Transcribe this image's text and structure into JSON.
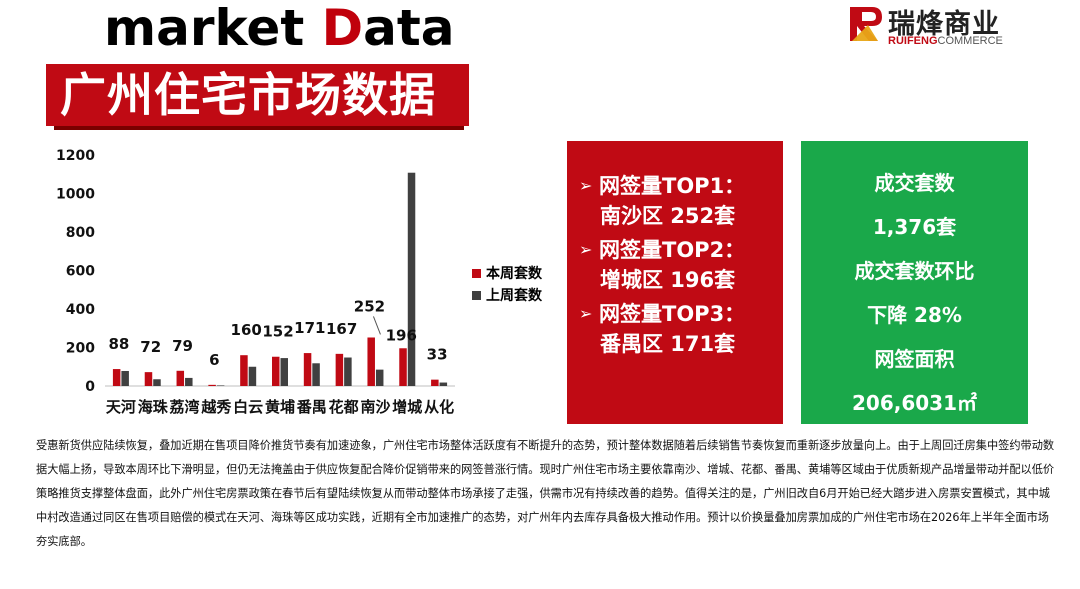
{
  "header": {
    "headline_prefix": "market ",
    "headline_accent": "D",
    "headline_suffix": "ata",
    "title": "广州住宅市场数据"
  },
  "logo": {
    "cn_name": "瑞烽商业",
    "en_bold": "RUIFENG",
    "en_light": "COMMERCE"
  },
  "chart_data": {
    "type": "bar",
    "categories": [
      "天河",
      "海珠",
      "荔湾",
      "越秀",
      "白云",
      "黄埔",
      "番禺",
      "花都",
      "南沙",
      "增城",
      "从化"
    ],
    "series": [
      {
        "name": "本周套数",
        "color": "#c00a14",
        "values": [
          88,
          72,
          79,
          6,
          160,
          152,
          171,
          167,
          252,
          196,
          33
        ]
      },
      {
        "name": "上周套数",
        "color": "#404040",
        "values": [
          78,
          35,
          42,
          3,
          100,
          145,
          118,
          148,
          85,
          1108,
          18
        ]
      }
    ],
    "data_labels": [
      "88",
      "72",
      "79",
      "6",
      "160",
      "152",
      "171",
      "167",
      "252",
      "196",
      "33"
    ],
    "yticks": [
      "0",
      "200",
      "400",
      "600",
      "800",
      "1000",
      "1200"
    ],
    "ylim": [
      0,
      1200
    ],
    "grid": false,
    "legend_position": "right"
  },
  "top_panel": {
    "lines": [
      {
        "label": "网签量TOP1：",
        "value": "南沙区 252套"
      },
      {
        "label": "网签量TOP2：",
        "value": "增城区 196套"
      },
      {
        "label": "网签量TOP3：",
        "value": "番禺区 171套"
      }
    ]
  },
  "stats_panel": {
    "deals_label": "成交套数",
    "deals_value": "1,376套",
    "mom_label": "成交套数环比",
    "mom_value": "下降 28%",
    "area_label": "网签面积",
    "area_value": "206,6031㎡"
  },
  "commentary": "受惠新货供应陆续恢复，叠加近期在售项目降价推货节奏有加速迹象，广州住宅市场整体活跃度有不断提升的态势，预计整体数据随着后续销售节奏恢复而重新逐步放量向上。由于上周回迁房集中签约带动数据大幅上扬，导致本周环比下滑明显，但仍无法掩盖由于供应恢复配合降价促销带来的网签普涨行情。现时广州住宅市场主要依靠南沙、增城、花都、番禺、黄埔等区域由于优质新规产品增量带动并配以低价策略推货支撑整体盘面，此外广州住宅房票政策在春节后有望陆续恢复从而带动整体市场承接了走强，供需市况有持续改善的趋势。值得关注的是，广州旧改自6月开始已经大踏步进入房票安置模式，其中城中村改造通过同区在售项目赔偿的模式在天河、海珠等区成功实践，近期有全市加速推广的态势，对广州年内去库存具备极大推动作用。预计以价换量叠加房票加成的广州住宅市场在2026年上半年全面市场夯实底部。",
  "colors": {
    "brand_red": "#c00a14",
    "green": "#1aa84a",
    "dark_bar": "#404040"
  }
}
